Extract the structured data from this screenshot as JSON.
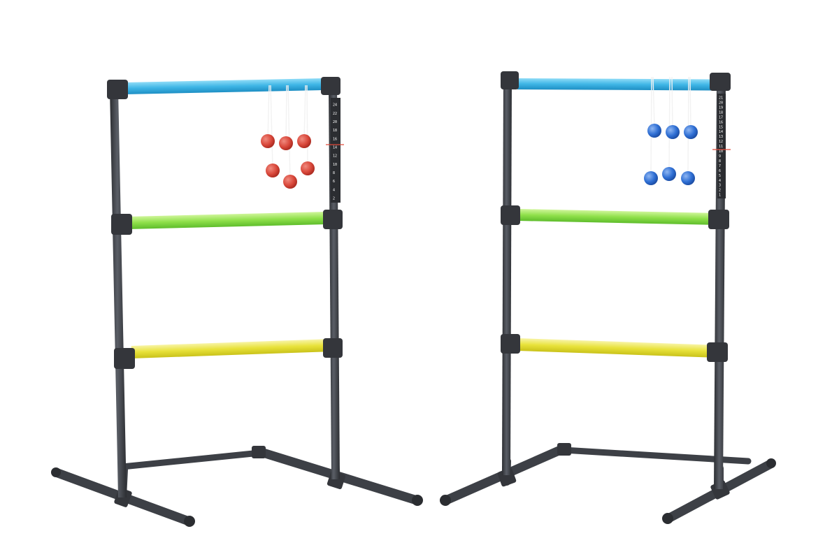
{
  "scene": {
    "background": "#ffffff",
    "frame_color": "#3d4046",
    "rung_colors": {
      "top": "#3fb6e6",
      "middle": "#8fe04a",
      "bottom": "#e8e23a"
    },
    "bola_colors": {
      "left": "#d9483b",
      "right": "#2f6fd4"
    }
  },
  "ladders": [
    {
      "id": "left",
      "bola_color": "red",
      "bola_count": 6,
      "scoreboard_numbers": [
        "24",
        "22",
        "20",
        "18",
        "16",
        "14",
        "12",
        "10",
        "8",
        "6",
        "4",
        "2"
      ]
    },
    {
      "id": "right",
      "bola_color": "blue",
      "bola_count": 6,
      "scoreboard_numbers": [
        "21",
        "20",
        "19",
        "18",
        "17",
        "16",
        "15",
        "14",
        "13",
        "12",
        "11",
        "10",
        "9",
        "8",
        "7",
        "6",
        "5",
        "4",
        "3",
        "2",
        "1"
      ]
    }
  ]
}
